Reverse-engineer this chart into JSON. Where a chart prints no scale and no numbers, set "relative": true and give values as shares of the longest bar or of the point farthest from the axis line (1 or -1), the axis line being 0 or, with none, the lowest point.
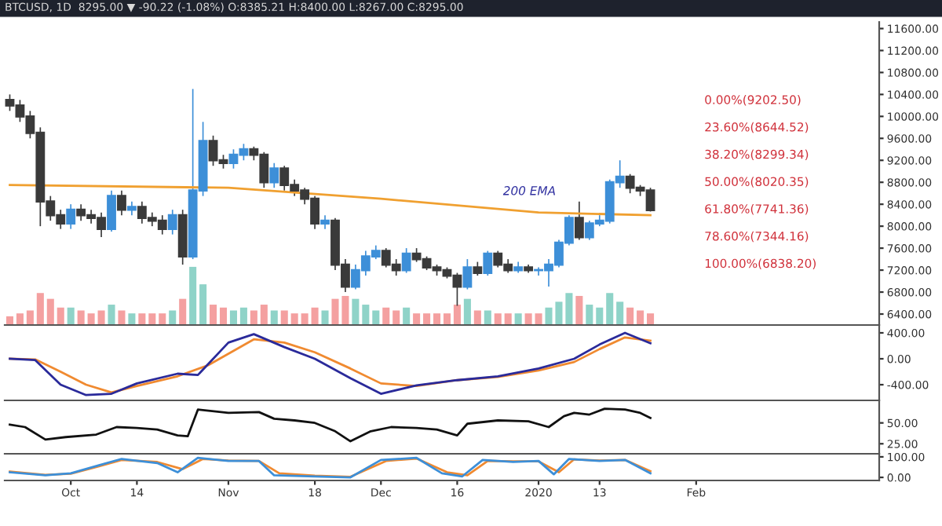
{
  "chart_data": [
    {
      "type": "candlestick",
      "title": "BTCUSD, 1D  8295.00 ▼ -90.22 (-1.08%) O:8385.21 H:8400.00 L:8267.00 C:8295.00",
      "x": [
        "2019-09-19",
        "2019-09-21",
        "2019-09-23",
        "2019-09-25",
        "2019-09-27",
        "2019-09-29",
        "2019-10-01",
        "2019-10-03",
        "2019-10-05",
        "2019-10-07",
        "2019-10-09",
        "2019-10-11",
        "2019-10-13",
        "2019-10-15",
        "2019-10-17",
        "2019-10-19",
        "2019-10-21",
        "2019-10-23",
        "2019-10-25",
        "2019-10-27",
        "2019-10-29",
        "2019-10-31",
        "2019-11-02",
        "2019-11-04",
        "2019-11-06",
        "2019-11-08",
        "2019-11-10",
        "2019-11-12",
        "2019-11-14",
        "2019-11-16",
        "2019-11-18",
        "2019-11-20",
        "2019-11-22",
        "2019-11-24",
        "2019-11-26",
        "2019-11-28",
        "2019-11-30",
        "2019-12-02",
        "2019-12-04",
        "2019-12-06",
        "2019-12-08",
        "2019-12-10",
        "2019-12-12",
        "2019-12-14",
        "2019-12-16",
        "2019-12-18",
        "2019-12-20",
        "2019-12-22",
        "2019-12-24",
        "2019-12-26",
        "2019-12-28",
        "2019-12-30",
        "2020-01-01",
        "2020-01-03",
        "2020-01-05",
        "2020-01-07",
        "2020-01-09",
        "2020-01-11",
        "2020-01-13",
        "2020-01-15",
        "2020-01-17",
        "2020-01-19",
        "2020-01-21",
        "2020-01-23"
      ],
      "ohlc": [
        [
          10300,
          10400,
          10100,
          10200
        ],
        [
          10200,
          10300,
          9900,
          10000
        ],
        [
          10000,
          10100,
          9600,
          9700
        ],
        [
          9700,
          9800,
          8000,
          8450
        ],
        [
          8450,
          8550,
          8100,
          8200
        ],
        [
          8200,
          8300,
          7950,
          8050
        ],
        [
          8050,
          8400,
          7950,
          8300
        ],
        [
          8300,
          8400,
          8100,
          8200
        ],
        [
          8200,
          8300,
          8050,
          8150
        ],
        [
          8150,
          8250,
          7800,
          7950
        ],
        [
          7950,
          8650,
          7900,
          8550
        ],
        [
          8550,
          8650,
          8200,
          8300
        ],
        [
          8300,
          8450,
          8200,
          8350
        ],
        [
          8350,
          8450,
          8050,
          8150
        ],
        [
          8150,
          8250,
          8000,
          8100
        ],
        [
          8100,
          8200,
          7850,
          7950
        ],
        [
          7950,
          8300,
          7850,
          8200
        ],
        [
          8200,
          8300,
          7300,
          7450
        ],
        [
          7450,
          10500,
          7400,
          8650
        ],
        [
          8650,
          9900,
          8550,
          9550
        ],
        [
          9550,
          9650,
          9100,
          9200
        ],
        [
          9200,
          9300,
          9050,
          9150
        ],
        [
          9150,
          9400,
          9050,
          9300
        ],
        [
          9300,
          9500,
          9200,
          9400
        ],
        [
          9400,
          9450,
          9200,
          9300
        ],
        [
          9300,
          9350,
          8700,
          8800
        ],
        [
          8800,
          9150,
          8700,
          9050
        ],
        [
          9050,
          9100,
          8650,
          8750
        ],
        [
          8750,
          8850,
          8550,
          8650
        ],
        [
          8650,
          8700,
          8400,
          8500
        ],
        [
          8500,
          8550,
          7950,
          8050
        ],
        [
          8050,
          8200,
          7950,
          8100
        ],
        [
          8100,
          8150,
          7200,
          7300
        ],
        [
          7300,
          7400,
          6800,
          6900
        ],
        [
          6900,
          7300,
          6850,
          7200
        ],
        [
          7200,
          7550,
          7100,
          7450
        ],
        [
          7450,
          7650,
          7400,
          7550
        ],
        [
          7550,
          7600,
          7250,
          7300
        ],
        [
          7300,
          7400,
          7100,
          7200
        ],
        [
          7200,
          7600,
          7150,
          7500
        ],
        [
          7500,
          7600,
          7350,
          7400
        ],
        [
          7400,
          7450,
          7200,
          7250
        ],
        [
          7250,
          7300,
          7100,
          7200
        ],
        [
          7200,
          7250,
          7050,
          7100
        ],
        [
          7100,
          7150,
          6550,
          6900
        ],
        [
          6900,
          7400,
          6850,
          7250
        ],
        [
          7250,
          7350,
          7100,
          7150
        ],
        [
          7150,
          7550,
          7100,
          7500
        ],
        [
          7500,
          7550,
          7250,
          7300
        ],
        [
          7300,
          7400,
          7150,
          7200
        ],
        [
          7200,
          7350,
          7150,
          7250
        ],
        [
          7250,
          7300,
          7150,
          7200
        ],
        [
          7200,
          7250,
          7100,
          7200
        ],
        [
          7200,
          7400,
          6900,
          7300
        ],
        [
          7300,
          7750,
          7250,
          7700
        ],
        [
          7700,
          8200,
          7650,
          8150
        ],
        [
          8150,
          8450,
          7750,
          7800
        ],
        [
          7800,
          8100,
          7750,
          8050
        ],
        [
          8050,
          8200,
          8000,
          8100
        ],
        [
          8100,
          8850,
          8050,
          8800
        ],
        [
          8800,
          9200,
          8700,
          8900
        ],
        [
          8900,
          8950,
          8600,
          8700
        ],
        [
          8700,
          8750,
          8550,
          8650
        ],
        [
          8650,
          8700,
          8267,
          8295
        ]
      ],
      "colors": [
        "#3a3a3a",
        "#3a3a3a",
        "#3a3a3a",
        "#3a3a3a",
        "#3a3a3a",
        "#3a3a3a",
        "#3d8fd8",
        "#3a3a3a",
        "#3a3a3a",
        "#3a3a3a",
        "#3d8fd8",
        "#3a3a3a",
        "#3d8fd8",
        "#3a3a3a",
        "#3a3a3a",
        "#3a3a3a",
        "#3d8fd8",
        "#3a3a3a",
        "#3d8fd8",
        "#3d8fd8",
        "#3a3a3a",
        "#3a3a3a",
        "#3d8fd8",
        "#3d8fd8",
        "#3a3a3a",
        "#3a3a3a",
        "#3d8fd8",
        "#3a3a3a",
        "#3a3a3a",
        "#3a3a3a",
        "#3a3a3a",
        "#3d8fd8",
        "#3a3a3a",
        "#3a3a3a",
        "#3d8fd8",
        "#3d8fd8",
        "#3d8fd8",
        "#3a3a3a",
        "#3a3a3a",
        "#3d8fd8",
        "#3a3a3a",
        "#3a3a3a",
        "#3a3a3a",
        "#3a3a3a",
        "#3a3a3a",
        "#3d8fd8",
        "#3a3a3a",
        "#3d8fd8",
        "#3a3a3a",
        "#3a3a3a",
        "#3d8fd8",
        "#3a3a3a",
        "#3d8fd8",
        "#3d8fd8",
        "#3d8fd8",
        "#3d8fd8",
        "#3a3a3a",
        "#3d8fd8",
        "#3d8fd8",
        "#3d8fd8",
        "#3d8fd8",
        "#3a3a3a",
        "#3a3a3a",
        "#3a3a3a"
      ],
      "series": [
        {
          "type": "line",
          "color": "#f0a030",
          "x": [
            "2019-09-19",
            "2019-11-01",
            "2019-12-01",
            "2020-01-01",
            "2020-01-23"
          ],
          "values": [
            8750,
            8700,
            8500,
            8250,
            8200
          ]
        }
      ],
      "annotations": [
        "200 EMA",
        "0.00%(9202.50)",
        "23.60%(8644.52)",
        "38.20%(8299.34)",
        "50.00%(8020.35)",
        "61.80%(7741.36)",
        "78.60%(7344.16)",
        "100.00%(6838.20)"
      ],
      "xlim": [
        "2019-09-18",
        "2020-03-08"
      ],
      "ylim": [
        6200,
        11720
      ],
      "yticks": [
        {
          "value": 6400,
          "label": "6400.00"
        },
        {
          "value": 6800,
          "label": "6800.00"
        },
        {
          "value": 7200,
          "label": "7200.00"
        },
        {
          "value": 7600,
          "label": "7600.00"
        },
        {
          "value": 8000,
          "label": "8000.00"
        },
        {
          "value": 8400,
          "label": "8400.00"
        },
        {
          "value": 8800,
          "label": "8800.00"
        },
        {
          "value": 9200,
          "label": "9200.00"
        },
        {
          "value": 9600,
          "label": "9600.00"
        },
        {
          "value": 10000,
          "label": "10000.00"
        },
        {
          "value": 10400,
          "label": "10400.00"
        },
        {
          "value": 10800,
          "label": "10800.00"
        },
        {
          "value": 11200,
          "label": "11200.00"
        },
        {
          "value": 11600,
          "label": "11600.00"
        }
      ],
      "tick_labels": "y",
      "grid": false,
      "legend": false
    },
    {
      "type": "bar",
      "relative": true,
      "x": [
        "2019-09-19",
        "2019-09-21",
        "2019-09-23",
        "2019-09-25",
        "2019-09-27",
        "2019-09-29",
        "2019-10-01",
        "2019-10-03",
        "2019-10-05",
        "2019-10-07",
        "2019-10-09",
        "2019-10-11",
        "2019-10-13",
        "2019-10-15",
        "2019-10-17",
        "2019-10-19",
        "2019-10-21",
        "2019-10-23",
        "2019-10-25",
        "2019-10-27",
        "2019-10-29",
        "2019-10-31",
        "2019-11-02",
        "2019-11-04",
        "2019-11-06",
        "2019-11-08",
        "2019-11-10",
        "2019-11-12",
        "2019-11-14",
        "2019-11-16",
        "2019-11-18",
        "2019-11-20",
        "2019-11-22",
        "2019-11-24",
        "2019-11-26",
        "2019-11-28",
        "2019-11-30",
        "2019-12-02",
        "2019-12-04",
        "2019-12-06",
        "2019-12-08",
        "2019-12-10",
        "2019-12-12",
        "2019-12-14",
        "2019-12-16",
        "2019-12-18",
        "2019-12-20",
        "2019-12-22",
        "2019-12-24",
        "2019-12-26",
        "2019-12-28",
        "2019-12-30",
        "2020-01-01",
        "2020-01-03",
        "2020-01-05",
        "2020-01-07",
        "2020-01-09",
        "2020-01-11",
        "2020-01-13",
        "2020-01-15",
        "2020-01-17",
        "2020-01-19",
        "2020-01-21",
        "2020-01-23"
      ],
      "values": [
        0.15,
        0.2,
        0.25,
        0.55,
        0.45,
        0.3,
        0.3,
        0.25,
        0.2,
        0.25,
        0.35,
        0.25,
        0.2,
        0.2,
        0.2,
        0.2,
        0.25,
        0.45,
        1.0,
        0.7,
        0.35,
        0.3,
        0.25,
        0.3,
        0.25,
        0.35,
        0.25,
        0.25,
        0.2,
        0.2,
        0.3,
        0.25,
        0.45,
        0.5,
        0.45,
        0.35,
        0.25,
        0.3,
        0.25,
        0.3,
        0.2,
        0.2,
        0.2,
        0.2,
        0.35,
        0.45,
        0.25,
        0.25,
        0.2,
        0.2,
        0.2,
        0.2,
        0.2,
        0.3,
        0.4,
        0.55,
        0.5,
        0.35,
        0.3,
        0.55,
        0.4,
        0.3,
        0.25,
        0.2
      ],
      "colors": [
        "#f4a0a0",
        "#f4a0a0",
        "#f4a0a0",
        "#f4a0a0",
        "#f4a0a0",
        "#f4a0a0",
        "#8fd3c8",
        "#f4a0a0",
        "#f4a0a0",
        "#f4a0a0",
        "#8fd3c8",
        "#f4a0a0",
        "#8fd3c8",
        "#f4a0a0",
        "#f4a0a0",
        "#f4a0a0",
        "#8fd3c8",
        "#f4a0a0",
        "#8fd3c8",
        "#8fd3c8",
        "#f4a0a0",
        "#f4a0a0",
        "#8fd3c8",
        "#8fd3c8",
        "#f4a0a0",
        "#f4a0a0",
        "#8fd3c8",
        "#f4a0a0",
        "#f4a0a0",
        "#f4a0a0",
        "#f4a0a0",
        "#8fd3c8",
        "#f4a0a0",
        "#f4a0a0",
        "#8fd3c8",
        "#8fd3c8",
        "#8fd3c8",
        "#f4a0a0",
        "#f4a0a0",
        "#8fd3c8",
        "#f4a0a0",
        "#f4a0a0",
        "#f4a0a0",
        "#f4a0a0",
        "#f4a0a0",
        "#8fd3c8",
        "#f4a0a0",
        "#8fd3c8",
        "#f4a0a0",
        "#f4a0a0",
        "#8fd3c8",
        "#f4a0a0",
        "#f4a0a0",
        "#8fd3c8",
        "#8fd3c8",
        "#8fd3c8",
        "#f4a0a0",
        "#8fd3c8",
        "#8fd3c8",
        "#8fd3c8",
        "#8fd3c8",
        "#f4a0a0",
        "#f4a0a0",
        "#f4a0a0"
      ],
      "xlim": [
        "2019-09-18",
        "2020-03-08"
      ],
      "tick_labels": false
    },
    {
      "type": "line",
      "series": [
        {
          "color": "#2a2a9a",
          "x": [
            "2019-09-19",
            "2019-09-24",
            "2019-09-29",
            "2019-10-04",
            "2019-10-09",
            "2019-10-14",
            "2019-10-22",
            "2019-10-26",
            "2019-11-01",
            "2019-11-06",
            "2019-11-12",
            "2019-11-18",
            "2019-11-25",
            "2019-12-01",
            "2019-12-08",
            "2019-12-16",
            "2019-12-24",
            "2020-01-01",
            "2020-01-08",
            "2020-01-13",
            "2020-01-18",
            "2020-01-23"
          ],
          "values": [
            0,
            -20,
            -400,
            -560,
            -540,
            -380,
            -230,
            -250,
            250,
            380,
            180,
            0,
            -300,
            -540,
            -410,
            -330,
            -270,
            -150,
            0,
            220,
            400,
            240
          ]
        },
        {
          "color": "#f08a30",
          "x": [
            "2019-09-19",
            "2019-09-24",
            "2019-09-29",
            "2019-10-04",
            "2019-10-09",
            "2019-10-14",
            "2019-10-22",
            "2019-10-28",
            "2019-11-06",
            "2019-11-12",
            "2019-11-18",
            "2019-11-25",
            "2019-12-01",
            "2019-12-08",
            "2019-12-16",
            "2019-12-24",
            "2020-01-01",
            "2020-01-08",
            "2020-01-13",
            "2020-01-18",
            "2020-01-23"
          ],
          "values": [
            0,
            -10,
            -200,
            -400,
            -520,
            -420,
            -270,
            -100,
            300,
            250,
            100,
            -150,
            -380,
            -420,
            -330,
            -280,
            -180,
            -50,
            150,
            330,
            280
          ]
        }
      ],
      "xlim": [
        "2019-09-18",
        "2020-03-08"
      ],
      "ylim": [
        -642,
        521
      ],
      "yticks": [
        {
          "value": -400,
          "label": "-400.00"
        },
        {
          "value": 0,
          "label": "0.00"
        },
        {
          "value": 400,
          "label": "400.00"
        }
      ],
      "tick_labels": "y"
    },
    {
      "type": "line",
      "series": [
        {
          "color": "#111111",
          "x": [
            "2019-09-19",
            "2019-09-22",
            "2019-09-26",
            "2019-09-30",
            "2019-10-06",
            "2019-10-10",
            "2019-10-14",
            "2019-10-18",
            "2019-10-22",
            "2019-10-24",
            "2019-10-26",
            "2019-11-01",
            "2019-11-07",
            "2019-11-10",
            "2019-11-14",
            "2019-11-18",
            "2019-11-22",
            "2019-11-25",
            "2019-11-29",
            "2019-12-03",
            "2019-12-08",
            "2019-12-12",
            "2019-12-16",
            "2019-12-18",
            "2019-12-24",
            "2019-12-30",
            "2020-01-03",
            "2020-01-06",
            "2020-01-08",
            "2020-01-11",
            "2020-01-14",
            "2020-01-18",
            "2020-01-21",
            "2020-01-23"
          ],
          "values": [
            48,
            45,
            30,
            33,
            36,
            45,
            44,
            42,
            35,
            34,
            66,
            62,
            63,
            55,
            53,
            50,
            40,
            28,
            40,
            45,
            44,
            42,
            35,
            49,
            53,
            52,
            45,
            58,
            62,
            60,
            67,
            66,
            62,
            56
          ]
        }
      ],
      "xlim": [
        "2019-09-18",
        "2020-03-08"
      ],
      "ylim": [
        13,
        77
      ],
      "yticks": [
        {
          "value": 25,
          "label": "25.00"
        },
        {
          "value": 50,
          "label": "50.00"
        }
      ],
      "tick_labels": "y"
    },
    {
      "type": "line",
      "series": [
        {
          "color": "#3d8fd8",
          "x": [
            "2019-09-19",
            "2019-09-26",
            "2019-10-01",
            "2019-10-06",
            "2019-10-11",
            "2019-10-18",
            "2019-10-22",
            "2019-10-26",
            "2019-11-01",
            "2019-11-07",
            "2019-11-10",
            "2019-11-18",
            "2019-11-25",
            "2019-12-01",
            "2019-12-08",
            "2019-12-13",
            "2019-12-17",
            "2019-12-21",
            "2019-12-27",
            "2020-01-01",
            "2020-01-04",
            "2020-01-07",
            "2020-01-13",
            "2020-01-18",
            "2020-01-23"
          ],
          "values": [
            25,
            10,
            20,
            55,
            90,
            70,
            25,
            95,
            80,
            80,
            10,
            5,
            0,
            85,
            95,
            20,
            5,
            85,
            75,
            80,
            15,
            90,
            80,
            85,
            20
          ]
        },
        {
          "color": "#f08a30",
          "x": [
            "2019-09-19",
            "2019-09-26",
            "2019-10-01",
            "2019-10-06",
            "2019-10-11",
            "2019-10-18",
            "2019-10-23",
            "2019-10-27",
            "2019-11-01",
            "2019-11-07",
            "2019-11-11",
            "2019-11-18",
            "2019-11-25",
            "2019-12-02",
            "2019-12-08",
            "2019-12-14",
            "2019-12-18",
            "2019-12-22",
            "2019-12-27",
            "2020-01-01",
            "2020-01-05",
            "2020-01-08",
            "2020-01-13",
            "2020-01-18",
            "2020-01-23"
          ],
          "values": [
            28,
            12,
            18,
            50,
            85,
            75,
            40,
            90,
            82,
            80,
            20,
            8,
            3,
            80,
            92,
            25,
            10,
            80,
            78,
            78,
            25,
            88,
            82,
            85,
            30
          ]
        }
      ],
      "xlim": [
        "2019-09-18",
        "2020-03-08"
      ],
      "ylim": [
        -15,
        115
      ],
      "yticks": [
        {
          "value": 0,
          "label": "0.00"
        },
        {
          "value": 100,
          "label": "100.00"
        }
      ],
      "xticks": [
        {
          "value": "2019-10-01",
          "label": "Oct"
        },
        {
          "value": "2019-10-14",
          "label": "14"
        },
        {
          "value": "2019-11-01",
          "label": "Nov"
        },
        {
          "value": "2019-11-18",
          "label": "18"
        },
        {
          "value": "2019-12-01",
          "label": "Dec"
        },
        {
          "value": "2019-12-16",
          "label": "16"
        },
        {
          "value": "2020-01-01",
          "label": "2020"
        },
        {
          "value": "2020-01-13",
          "label": "13"
        },
        {
          "value": "2020-02-01",
          "label": "Feb"
        }
      ]
    }
  ]
}
